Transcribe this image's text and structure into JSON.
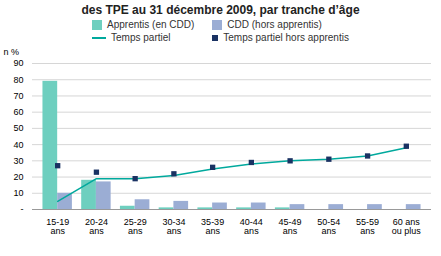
{
  "chart_data": {
    "type": "bar",
    "title": "des TPE au 31 décembre 2009, par tranche d’âge",
    "ylabel": "n %",
    "categories": [
      "15-19\nans",
      "20-24\nans",
      "25-29\nans",
      "30-34\nans",
      "35-39\nans",
      "40-44\nans",
      "45-49\nans",
      "50-54\nans",
      "55-59\nans",
      "60 ans\nou plus"
    ],
    "series": [
      {
        "name": "Apprentis (en CDD)",
        "type": "bar",
        "color": "#6ecfbf",
        "values": [
          79,
          18,
          2,
          1,
          1,
          1,
          1,
          0,
          0,
          0
        ]
      },
      {
        "name": "CDD (hors apprentis)",
        "type": "bar",
        "color": "#9badd4",
        "values": [
          10,
          17,
          6,
          5,
          4,
          4,
          3,
          3,
          3,
          3
        ]
      },
      {
        "name": "Temps partiel",
        "type": "line",
        "color": "#00a99d",
        "marker": "none",
        "line_style": "solid",
        "values": [
          5,
          19,
          19,
          21,
          25,
          28,
          30,
          31,
          33,
          38
        ]
      },
      {
        "name": "Temps partiel hors apprentis",
        "type": "scatter",
        "color": "#1a3263",
        "marker": "square",
        "line_style": "none",
        "values": [
          27,
          23,
          19,
          22,
          26,
          29,
          30,
          31,
          33,
          39
        ]
      }
    ],
    "ylim": [
      0,
      90
    ],
    "yticks": [
      {
        "value": 0,
        "label": "-"
      },
      10,
      20,
      30,
      40,
      50,
      60,
      70,
      80,
      90
    ],
    "grid": true,
    "legend": "top"
  }
}
